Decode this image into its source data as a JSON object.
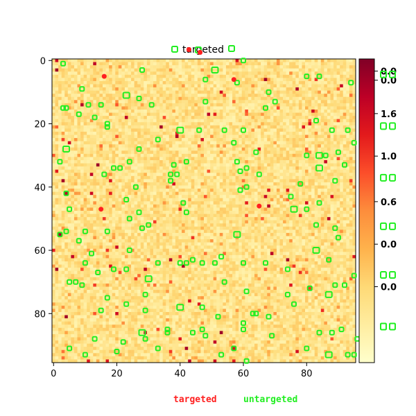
{
  "chart_data": {
    "type": "heatmap",
    "title": "targeted",
    "grid_size": [
      96,
      96
    ],
    "xlim": [
      0,
      95
    ],
    "ylim": [
      0,
      95
    ],
    "x_ticks": [
      0,
      20,
      40,
      60,
      80
    ],
    "y_ticks": [
      0,
      20,
      40,
      60,
      80
    ],
    "x_tick_labels": [
      "0",
      "20",
      "40",
      "60",
      "80"
    ],
    "y_tick_labels": [
      "0",
      "20",
      "40",
      "60",
      "80"
    ],
    "colormap": "YlOrRd",
    "colormap_stops": [
      "#ffffcc",
      "#ffeda0",
      "#fed976",
      "#feb24c",
      "#fd8d3c",
      "#fc4e2a",
      "#e31a1c",
      "#bd0026",
      "#800026"
    ],
    "value_range": [
      0,
      1.0
    ],
    "colorbar_labels": [
      {
        "text": "0.0",
        "color": "#ff2020",
        "frac": 0.96
      },
      {
        "text": "0.0",
        "color": "#ff2020",
        "frac": 0.93
      },
      {
        "text": "1.6",
        "color": "#ff2020",
        "frac": 0.82
      },
      {
        "text": "1.0",
        "color": "#ff2020",
        "frac": 0.68
      },
      {
        "text": "0.6",
        "color": "#ff2020",
        "frac": 0.53
      },
      {
        "text": "0.0",
        "color": "#ff2020",
        "frac": 0.39
      },
      {
        "text": "0.0",
        "color": "#ff2020",
        "frac": 0.25
      }
    ],
    "legend": [
      {
        "label": "targeted",
        "color": "#ff2020"
      },
      {
        "label": "untargeted",
        "color": "#22ee22"
      }
    ],
    "targeted_points": [
      [
        16,
        5
      ],
      [
        15,
        47
      ],
      [
        65,
        46
      ],
      [
        57,
        6
      ]
    ],
    "untargeted_points": [
      [
        3,
        1
      ],
      [
        60,
        0
      ],
      [
        28,
        3
      ],
      [
        51,
        3
      ],
      [
        9,
        9
      ],
      [
        48,
        6
      ],
      [
        58,
        7
      ],
      [
        80,
        5
      ],
      [
        84,
        5
      ],
      [
        94,
        7
      ],
      [
        3,
        15
      ],
      [
        4,
        15
      ],
      [
        11,
        14
      ],
      [
        15,
        14
      ],
      [
        23,
        11
      ],
      [
        27,
        12
      ],
      [
        31,
        14
      ],
      [
        48,
        13
      ],
      [
        68,
        10
      ],
      [
        67,
        15
      ],
      [
        70,
        13
      ],
      [
        8,
        17
      ],
      [
        13,
        18
      ],
      [
        17,
        21
      ],
      [
        17,
        20
      ],
      [
        40,
        22
      ],
      [
        46,
        22
      ],
      [
        54,
        22
      ],
      [
        60,
        22
      ],
      [
        83,
        19
      ],
      [
        88,
        22
      ],
      [
        93,
        22
      ],
      [
        33,
        25
      ],
      [
        57,
        26
      ],
      [
        27,
        28
      ],
      [
        2,
        32
      ],
      [
        4,
        28
      ],
      [
        19,
        34
      ],
      [
        21,
        34
      ],
      [
        24,
        32
      ],
      [
        37,
        36
      ],
      [
        38,
        33
      ],
      [
        42,
        32
      ],
      [
        58,
        32
      ],
      [
        61,
        34
      ],
      [
        64,
        29
      ],
      [
        80,
        30
      ],
      [
        84,
        30
      ],
      [
        86,
        30
      ],
      [
        90,
        29
      ],
      [
        95,
        26
      ],
      [
        16,
        36
      ],
      [
        26,
        40
      ],
      [
        37,
        38
      ],
      [
        39,
        36
      ],
      [
        59,
        35
      ],
      [
        65,
        36
      ],
      [
        78,
        39
      ],
      [
        84,
        34
      ],
      [
        89,
        38
      ],
      [
        92,
        33
      ],
      [
        4,
        42
      ],
      [
        5,
        47
      ],
      [
        23,
        44
      ],
      [
        41,
        45
      ],
      [
        42,
        48
      ],
      [
        59,
        41
      ],
      [
        61,
        40
      ],
      [
        75,
        43
      ],
      [
        76,
        47
      ],
      [
        80,
        47
      ],
      [
        84,
        45
      ],
      [
        4,
        54
      ],
      [
        10,
        54
      ],
      [
        2,
        55
      ],
      [
        17,
        54
      ],
      [
        24,
        50
      ],
      [
        27,
        48
      ],
      [
        28,
        53
      ],
      [
        30,
        52
      ],
      [
        58,
        55
      ],
      [
        83,
        52
      ],
      [
        89,
        53
      ],
      [
        90,
        56
      ],
      [
        8,
        57
      ],
      [
        12,
        61
      ],
      [
        14,
        67
      ],
      [
        10,
        64
      ],
      [
        19,
        66
      ],
      [
        23,
        66
      ],
      [
        24,
        60
      ],
      [
        30,
        69
      ],
      [
        33,
        64
      ],
      [
        40,
        64
      ],
      [
        42,
        64
      ],
      [
        44,
        63
      ],
      [
        47,
        64
      ],
      [
        51,
        64
      ],
      [
        53,
        62
      ],
      [
        60,
        64
      ],
      [
        67,
        64
      ],
      [
        74,
        66
      ],
      [
        83,
        60
      ],
      [
        87,
        63
      ],
      [
        95,
        68
      ],
      [
        5,
        70
      ],
      [
        7,
        70
      ],
      [
        9,
        71
      ],
      [
        15,
        79
      ],
      [
        17,
        75
      ],
      [
        23,
        77
      ],
      [
        29,
        74
      ],
      [
        29,
        79
      ],
      [
        40,
        78
      ],
      [
        47,
        78
      ],
      [
        52,
        81
      ],
      [
        54,
        70
      ],
      [
        61,
        73
      ],
      [
        63,
        80
      ],
      [
        64,
        80
      ],
      [
        68,
        81
      ],
      [
        74,
        74
      ],
      [
        76,
        77
      ],
      [
        81,
        72
      ],
      [
        87,
        74
      ],
      [
        89,
        71
      ],
      [
        92,
        71
      ],
      [
        60,
        83
      ],
      [
        60,
        85
      ],
      [
        47,
        85
      ],
      [
        13,
        88
      ],
      [
        10,
        93
      ],
      [
        5,
        91
      ],
      [
        20,
        92
      ],
      [
        22,
        89
      ],
      [
        28,
        86
      ],
      [
        29,
        88
      ],
      [
        36,
        86
      ],
      [
        44,
        86
      ],
      [
        48,
        87
      ],
      [
        53,
        93
      ],
      [
        57,
        91
      ],
      [
        61,
        95
      ],
      [
        69,
        87
      ],
      [
        80,
        91
      ],
      [
        84,
        86
      ],
      [
        87,
        93
      ],
      [
        88,
        86
      ],
      [
        91,
        85
      ],
      [
        93,
        93
      ],
      [
        95,
        93
      ],
      [
        96,
        88
      ],
      [
        36,
        85
      ],
      [
        33,
        91
      ]
    ]
  }
}
